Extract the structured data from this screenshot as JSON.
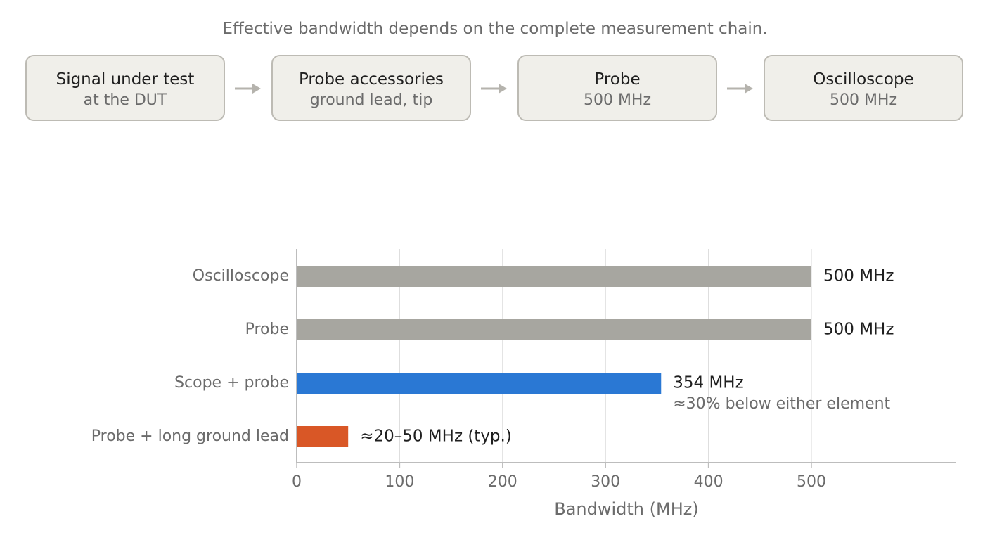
{
  "diagram": {
    "caption": "Effective bandwidth depends on the complete measurement chain.",
    "steps": [
      {
        "title": "Signal under test",
        "subtitle": "at the DUT"
      },
      {
        "title": "Probe accessories",
        "subtitle": "ground lead, tip"
      },
      {
        "title": "Probe",
        "subtitle": "500 MHz"
      },
      {
        "title": "Oscilloscope",
        "subtitle": "500 MHz"
      }
    ]
  },
  "chart_data": {
    "type": "bar",
    "orientation": "horizontal",
    "categories": [
      "Oscilloscope",
      "Probe",
      "Scope + probe",
      "Probe + long ground lead"
    ],
    "values": [
      500,
      500,
      354,
      50
    ],
    "bar_colors": [
      "#a7a6a0",
      "#a7a6a0",
      "#2a78d4",
      "#d95726"
    ],
    "data_labels": [
      "500 MHz",
      "500 MHz",
      "354 MHz",
      "≈20–50 MHz (typ.)"
    ],
    "annotations": [
      {
        "category": "Scope + probe",
        "text": "≈30% below either element"
      }
    ],
    "xlabel": "Bandwidth (MHz)",
    "ylabel": "",
    "xticks": [
      0,
      100,
      200,
      300,
      400,
      500
    ],
    "xlim": [
      0,
      640
    ],
    "grid": "vertical",
    "colors": {
      "label": "#1f1f1f",
      "muted": "#6b6b6b",
      "grid": "#dedede",
      "axis": "#bdbdbd",
      "box_fill": "#f0efea",
      "box_border": "#bdbbb4"
    }
  }
}
